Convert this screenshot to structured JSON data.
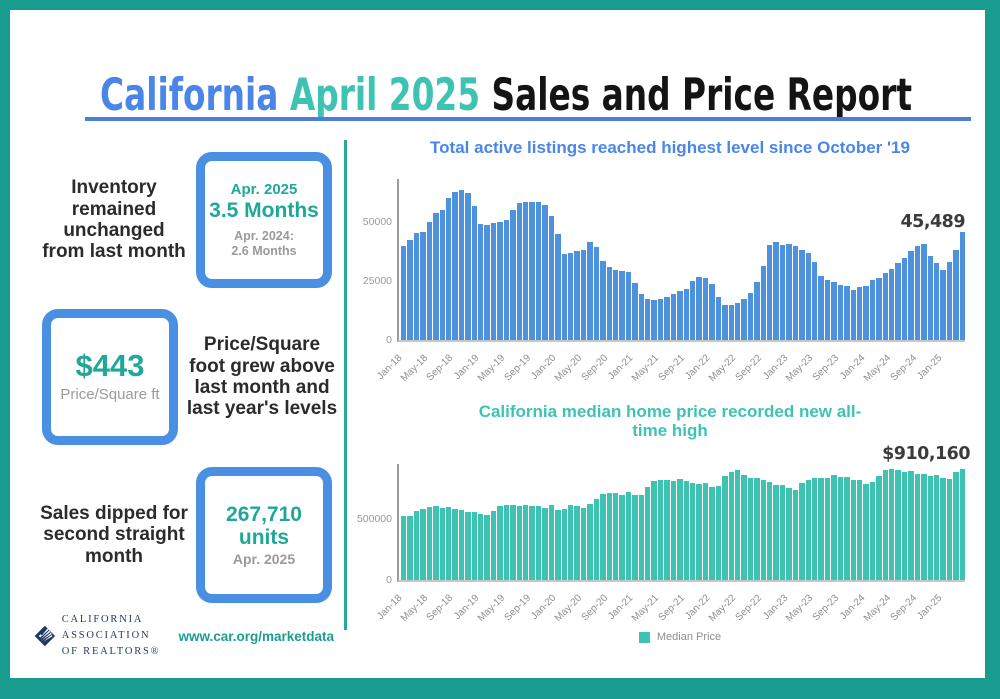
{
  "page": {
    "title_segments": [
      {
        "text": "California ",
        "color": "#4a86e8"
      },
      {
        "text": "April 2025 ",
        "color": "#3ec3b3"
      },
      {
        "text": "Sales and Price Report",
        "color": "#141414"
      }
    ],
    "divider_color": "#4a7fd4",
    "frame_color": "#199c8f"
  },
  "stats": [
    {
      "text": "Inventory remained unchanged from last month",
      "box": {
        "period": "Apr. 2025",
        "value": "3.5 Months",
        "compare_line1": "Apr. 2024:",
        "compare_line2": "2.6 Months"
      }
    },
    {
      "text": "Price/Square foot grew above last month and last year's levels",
      "box": {
        "value": "$443",
        "label": "Price/Square ft"
      }
    },
    {
      "text": "Sales dipped for second straight month",
      "box": {
        "value_line1": "267,710",
        "value_line2": "units",
        "period": "Apr. 2025"
      }
    }
  ],
  "footer": {
    "logo_line1": "CALIFORNIA",
    "logo_line2": "ASSOCIATION",
    "logo_line3": "OF REALTORS®",
    "url": "www.car.org/marketdata"
  },
  "chart_data": [
    {
      "type": "bar",
      "title": "Total active listings reached highest level since October '19",
      "title_color": "#4a86e8",
      "bar_color": "#4e91dc",
      "annotation": "45,489",
      "ylim": [
        0,
        68000
      ],
      "yticks": [
        {
          "value": 0,
          "label": "0"
        },
        {
          "value": 25000,
          "label": "25000"
        },
        {
          "value": 50000,
          "label": "50000"
        }
      ],
      "x_label_every": 4,
      "legend": null,
      "categories": [
        "Jan-18",
        "Feb-18",
        "Mar-18",
        "Apr-18",
        "May-18",
        "Jun-18",
        "Jul-18",
        "Aug-18",
        "Sep-18",
        "Oct-18",
        "Nov-18",
        "Dec-18",
        "Jan-19",
        "Feb-19",
        "Mar-19",
        "Apr-19",
        "May-19",
        "Jun-19",
        "Jul-19",
        "Aug-19",
        "Sep-19",
        "Oct-19",
        "Nov-19",
        "Dec-19",
        "Jan-20",
        "Feb-20",
        "Mar-20",
        "Apr-20",
        "May-20",
        "Jun-20",
        "Jul-20",
        "Aug-20",
        "Sep-20",
        "Oct-20",
        "Nov-20",
        "Dec-20",
        "Jan-21",
        "Feb-21",
        "Mar-21",
        "Apr-21",
        "May-21",
        "Jun-21",
        "Jul-21",
        "Aug-21",
        "Sep-21",
        "Oct-21",
        "Nov-21",
        "Dec-21",
        "Jan-22",
        "Feb-22",
        "Mar-22",
        "Apr-22",
        "May-22",
        "Jun-22",
        "Jul-22",
        "Aug-22",
        "Sep-22",
        "Oct-22",
        "Nov-22",
        "Dec-22",
        "Jan-23",
        "Feb-23",
        "Mar-23",
        "Apr-23",
        "May-23",
        "Jun-23",
        "Jul-23",
        "Aug-23",
        "Sep-23",
        "Oct-23",
        "Nov-23",
        "Dec-23",
        "Jan-24",
        "Feb-24",
        "Mar-24",
        "Apr-24",
        "May-24",
        "Jun-24",
        "Jul-24",
        "Aug-24",
        "Sep-24",
        "Oct-24",
        "Nov-24",
        "Dec-24",
        "Jan-25",
        "Feb-25",
        "Mar-25",
        "Apr-25"
      ],
      "values": [
        39800,
        42400,
        45300,
        45600,
        49900,
        53800,
        54800,
        60000,
        62700,
        63300,
        62300,
        56600,
        48900,
        48500,
        49400,
        49700,
        50500,
        55000,
        57900,
        58200,
        58400,
        58300,
        57000,
        52300,
        44700,
        36400,
        36900,
        37400,
        38100,
        41200,
        39300,
        33400,
        31000,
        29600,
        29100,
        28800,
        24000,
        19400,
        17300,
        17000,
        17500,
        18100,
        19600,
        20700,
        21600,
        25100,
        26600,
        26100,
        23600,
        18000,
        15000,
        14900,
        15600,
        17200,
        19900,
        24700,
        31100,
        40200,
        41600,
        40300,
        40600,
        39500,
        38000,
        36600,
        33100,
        27200,
        25200,
        24700,
        23200,
        22700,
        21300,
        22200,
        22800,
        25200,
        26200,
        28200,
        30200,
        32500,
        34800,
        37500,
        39900,
        40400,
        35400,
        32400,
        29500,
        33100,
        38000,
        45489
      ]
    },
    {
      "type": "bar",
      "title": "California median home price recorded new all-time high",
      "title_color": "#3ec3b3",
      "bar_color": "#3ec3b3",
      "annotation": "$910,160",
      "ylim": [
        0,
        950000
      ],
      "yticks": [
        {
          "value": 0,
          "label": "0"
        },
        {
          "value": 500000,
          "label": "500000"
        }
      ],
      "x_label_every": 4,
      "legend": {
        "label": "Median Price"
      },
      "categories": [
        "Jan-18",
        "Feb-18",
        "Mar-18",
        "Apr-18",
        "May-18",
        "Jun-18",
        "Jul-18",
        "Aug-18",
        "Sep-18",
        "Oct-18",
        "Nov-18",
        "Dec-18",
        "Jan-19",
        "Feb-19",
        "Mar-19",
        "Apr-19",
        "May-19",
        "Jun-19",
        "Jul-19",
        "Aug-19",
        "Sep-19",
        "Oct-19",
        "Nov-19",
        "Dec-19",
        "Jan-20",
        "Feb-20",
        "Mar-20",
        "Apr-20",
        "May-20",
        "Jun-20",
        "Jul-20",
        "Aug-20",
        "Sep-20",
        "Oct-20",
        "Nov-20",
        "Dec-20",
        "Jan-21",
        "Feb-21",
        "Mar-21",
        "Apr-21",
        "May-21",
        "Jun-21",
        "Jul-21",
        "Aug-21",
        "Sep-21",
        "Oct-21",
        "Nov-21",
        "Dec-21",
        "Jan-22",
        "Feb-22",
        "Mar-22",
        "Apr-22",
        "May-22",
        "Jun-22",
        "Jul-22",
        "Aug-22",
        "Sep-22",
        "Oct-22",
        "Nov-22",
        "Dec-22",
        "Jan-23",
        "Feb-23",
        "Mar-23",
        "Apr-23",
        "May-23",
        "Jun-23",
        "Jul-23",
        "Aug-23",
        "Sep-23",
        "Oct-23",
        "Nov-23",
        "Dec-23",
        "Jan-24",
        "Feb-24",
        "Mar-24",
        "Apr-24",
        "May-24",
        "Jun-24",
        "Jul-24",
        "Aug-24",
        "Sep-24",
        "Oct-24",
        "Nov-24",
        "Dec-24",
        "Jan-25",
        "Feb-25",
        "Mar-25",
        "Apr-25"
      ],
      "values": [
        527800,
        522440,
        564830,
        584460,
        600860,
        602760,
        591460,
        596410,
        578850,
        572000,
        554760,
        557600,
        538690,
        534140,
        563380,
        602920,
        611190,
        611420,
        607990,
        617410,
        605680,
        605280,
        589770,
        615090,
        575160,
        578840,
        612440,
        606410,
        588070,
        626170,
        666320,
        706900,
        712430,
        711300,
        699000,
        717930,
        699890,
        699000,
        758990,
        813980,
        818260,
        819630,
        811170,
        827940,
        808890,
        798440,
        782480,
        796570,
        765580,
        771270,
        849080,
        884890,
        898980,
        863790,
        833910,
        839460,
        821680,
        801190,
        777500,
        774580,
        751330,
        735480,
        791490,
        815340,
        836110,
        838260,
        832340,
        859800,
        843340,
        840360,
        822200,
        819740,
        788940,
        806490,
        854490,
        904210,
        908040,
        900720,
        886560,
        888740,
        868150,
        865440,
        852880,
        861020,
        838850,
        829060,
        884350,
        910160
      ]
    }
  ]
}
